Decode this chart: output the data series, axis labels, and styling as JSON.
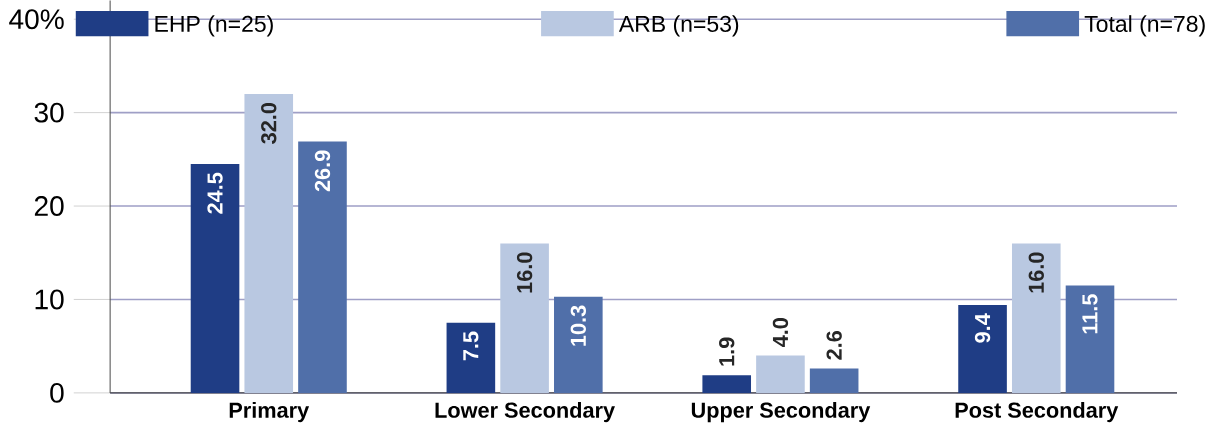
{
  "chart_data": {
    "type": "bar",
    "categories": [
      "Primary",
      "Lower Secondary",
      "Upper Secondary",
      "Post Secondary"
    ],
    "series": [
      {
        "name": "EHP (n=25)",
        "color": "#1f3d85",
        "values": [
          24.5,
          7.5,
          1.9,
          9.4
        ],
        "value_labels": [
          "24.5",
          "7.5",
          "1.9",
          "9.4"
        ]
      },
      {
        "name": "ARB (n=53)",
        "color": "#b9c8e1",
        "values": [
          32.0,
          16.0,
          4.0,
          16.0
        ],
        "value_labels": [
          "32.0",
          "16.0",
          "4.0",
          "16.0"
        ]
      },
      {
        "name": "Total (n=78)",
        "color": "#506fa9",
        "values": [
          26.9,
          10.3,
          2.6,
          11.5
        ],
        "value_labels": [
          "26.9",
          "10.3",
          "2.6",
          "11.5"
        ]
      }
    ],
    "ylim": [
      0,
      42
    ],
    "yticks": [
      0,
      10,
      20,
      30,
      {
        "value": 40,
        "label": "40%"
      }
    ],
    "grid": "y",
    "legend": "top"
  }
}
